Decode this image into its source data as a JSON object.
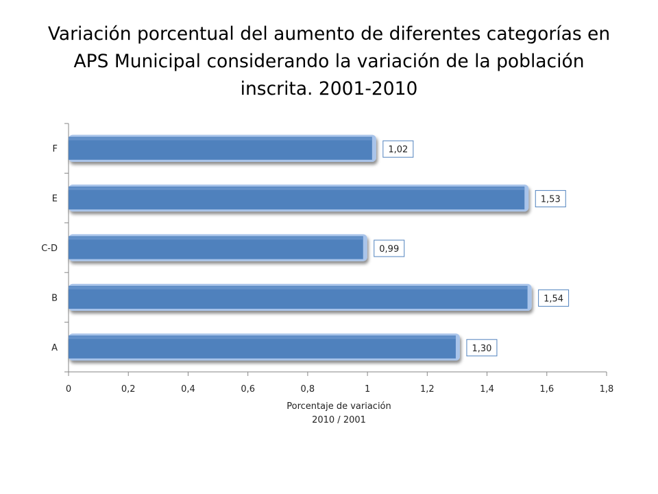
{
  "title_lines": [
    "Variación porcentual del aumento de diferentes categorías en",
    "APS Municipal considerando la variación de la población",
    "inscrita. 2001-2010"
  ],
  "chart_data": {
    "type": "bar",
    "orientation": "horizontal",
    "title": "Variación porcentual del aumento de diferentes categorías en APS Municipal considerando la variación de la población inscrita. 2001-2010",
    "categories": [
      "A",
      "B",
      "C-D",
      "E",
      "F"
    ],
    "values": [
      1.3,
      1.54,
      0.99,
      1.53,
      1.02
    ],
    "data_labels": [
      "1,30",
      "1,54",
      "0,99",
      "1,53",
      "1,02"
    ],
    "xlabel_lines": [
      "Porcentaje de variación",
      "2010 / 2001"
    ],
    "xlim": [
      0,
      1.8
    ],
    "xticks": [
      0,
      0.2,
      0.4,
      0.6,
      0.8,
      1,
      1.2,
      1.4,
      1.6,
      1.8
    ],
    "xtick_labels": [
      "0",
      "0,2",
      "0,4",
      "0,6",
      "0,8",
      "1",
      "1,2",
      "1,4",
      "1,6",
      "1,8"
    ],
    "grid": false,
    "legend": "none",
    "bar_color": "#4F81BD",
    "bar_edge_color": "#A9C4EA"
  }
}
